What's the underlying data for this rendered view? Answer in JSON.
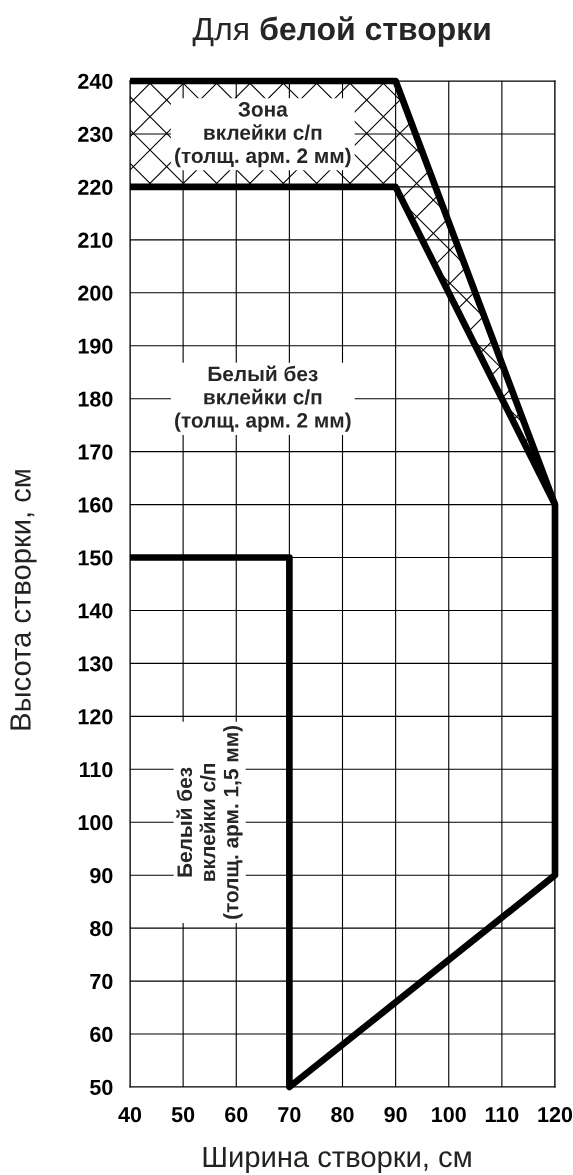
{
  "chart_data": {
    "type": "line",
    "title": "Для белой створки",
    "xlabel": "Ширина створки, см",
    "ylabel": "Высота створки, см",
    "xlim": [
      40,
      120
    ],
    "xticks": [
      40,
      50,
      60,
      70,
      80,
      90,
      100,
      110,
      120
    ],
    "ylim": [
      50,
      240
    ],
    "yticks": [
      50,
      60,
      70,
      80,
      90,
      100,
      110,
      120,
      130,
      140,
      150,
      160,
      170,
      180,
      190,
      200,
      210,
      220,
      230,
      240
    ],
    "grid": true,
    "line_style": "solid",
    "marker": "none",
    "series": [
      {
        "x": [
          40,
          90,
          120,
          120,
          70,
          70,
          40
        ],
        "values": [
          240,
          240,
          160,
          90,
          50,
          150,
          150
        ],
        "color": "#000000"
      },
      {
        "x": [
          40,
          90,
          120
        ],
        "values": [
          220,
          220,
          160
        ],
        "color": "#000000",
        "lower": [
          220,
          220,
          160
        ],
        "upper": [
          240,
          240,
          160
        ]
      }
    ],
    "annotations": [
      "Зона\nвклейки с/п\n(толщ. арм. 2 мм)",
      "Белый без\nвклейки с/п\n(толщ. арм. 2 мм)",
      "Белый без\nвклейки с/п\n(толщ. арм. 1,5 мм)"
    ]
  }
}
